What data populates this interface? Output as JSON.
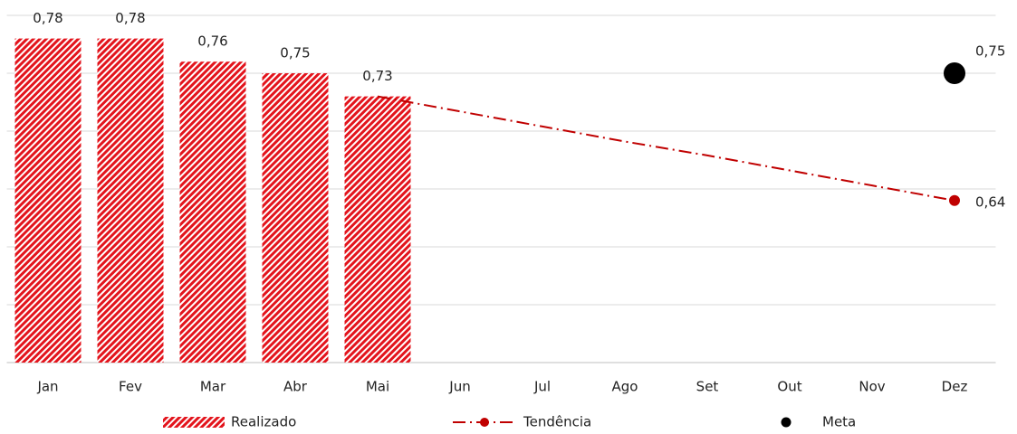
{
  "chart_data": {
    "type": "bar",
    "categories": [
      "Jan",
      "Fev",
      "Mar",
      "Abr",
      "Mai",
      "Jun",
      "Jul",
      "Ago",
      "Set",
      "Out",
      "Nov",
      "Dez"
    ],
    "series": [
      {
        "name": "Realizado",
        "type": "bar",
        "color": "#e3141c",
        "values": [
          0.78,
          0.78,
          0.76,
          0.75,
          0.73,
          null,
          null,
          null,
          null,
          null,
          null,
          null
        ],
        "value_labels": [
          "0,78",
          "0,78",
          "0,76",
          "0,75",
          "0,73",
          null,
          null,
          null,
          null,
          null,
          null,
          null
        ]
      },
      {
        "name": "Tendência",
        "type": "line",
        "color": "#c00000",
        "values": [
          null,
          null,
          null,
          null,
          0.73,
          0.717,
          0.704,
          0.691,
          0.679,
          0.666,
          0.653,
          0.64
        ],
        "value_labels": [
          null,
          null,
          null,
          null,
          null,
          null,
          null,
          null,
          null,
          null,
          null,
          "0,64"
        ]
      },
      {
        "name": "Meta",
        "type": "scatter",
        "color": "#000000",
        "values": [
          null,
          null,
          null,
          null,
          null,
          null,
          null,
          null,
          null,
          null,
          null,
          0.75
        ],
        "value_labels": [
          null,
          null,
          null,
          null,
          null,
          null,
          null,
          null,
          null,
          null,
          null,
          "0,75"
        ]
      }
    ],
    "ylim": [
      0.5,
      0.8
    ],
    "yticks": [
      0.5,
      0.55,
      0.6,
      0.65,
      0.7,
      0.75,
      0.8
    ],
    "grid": true,
    "legend": "bottom"
  }
}
